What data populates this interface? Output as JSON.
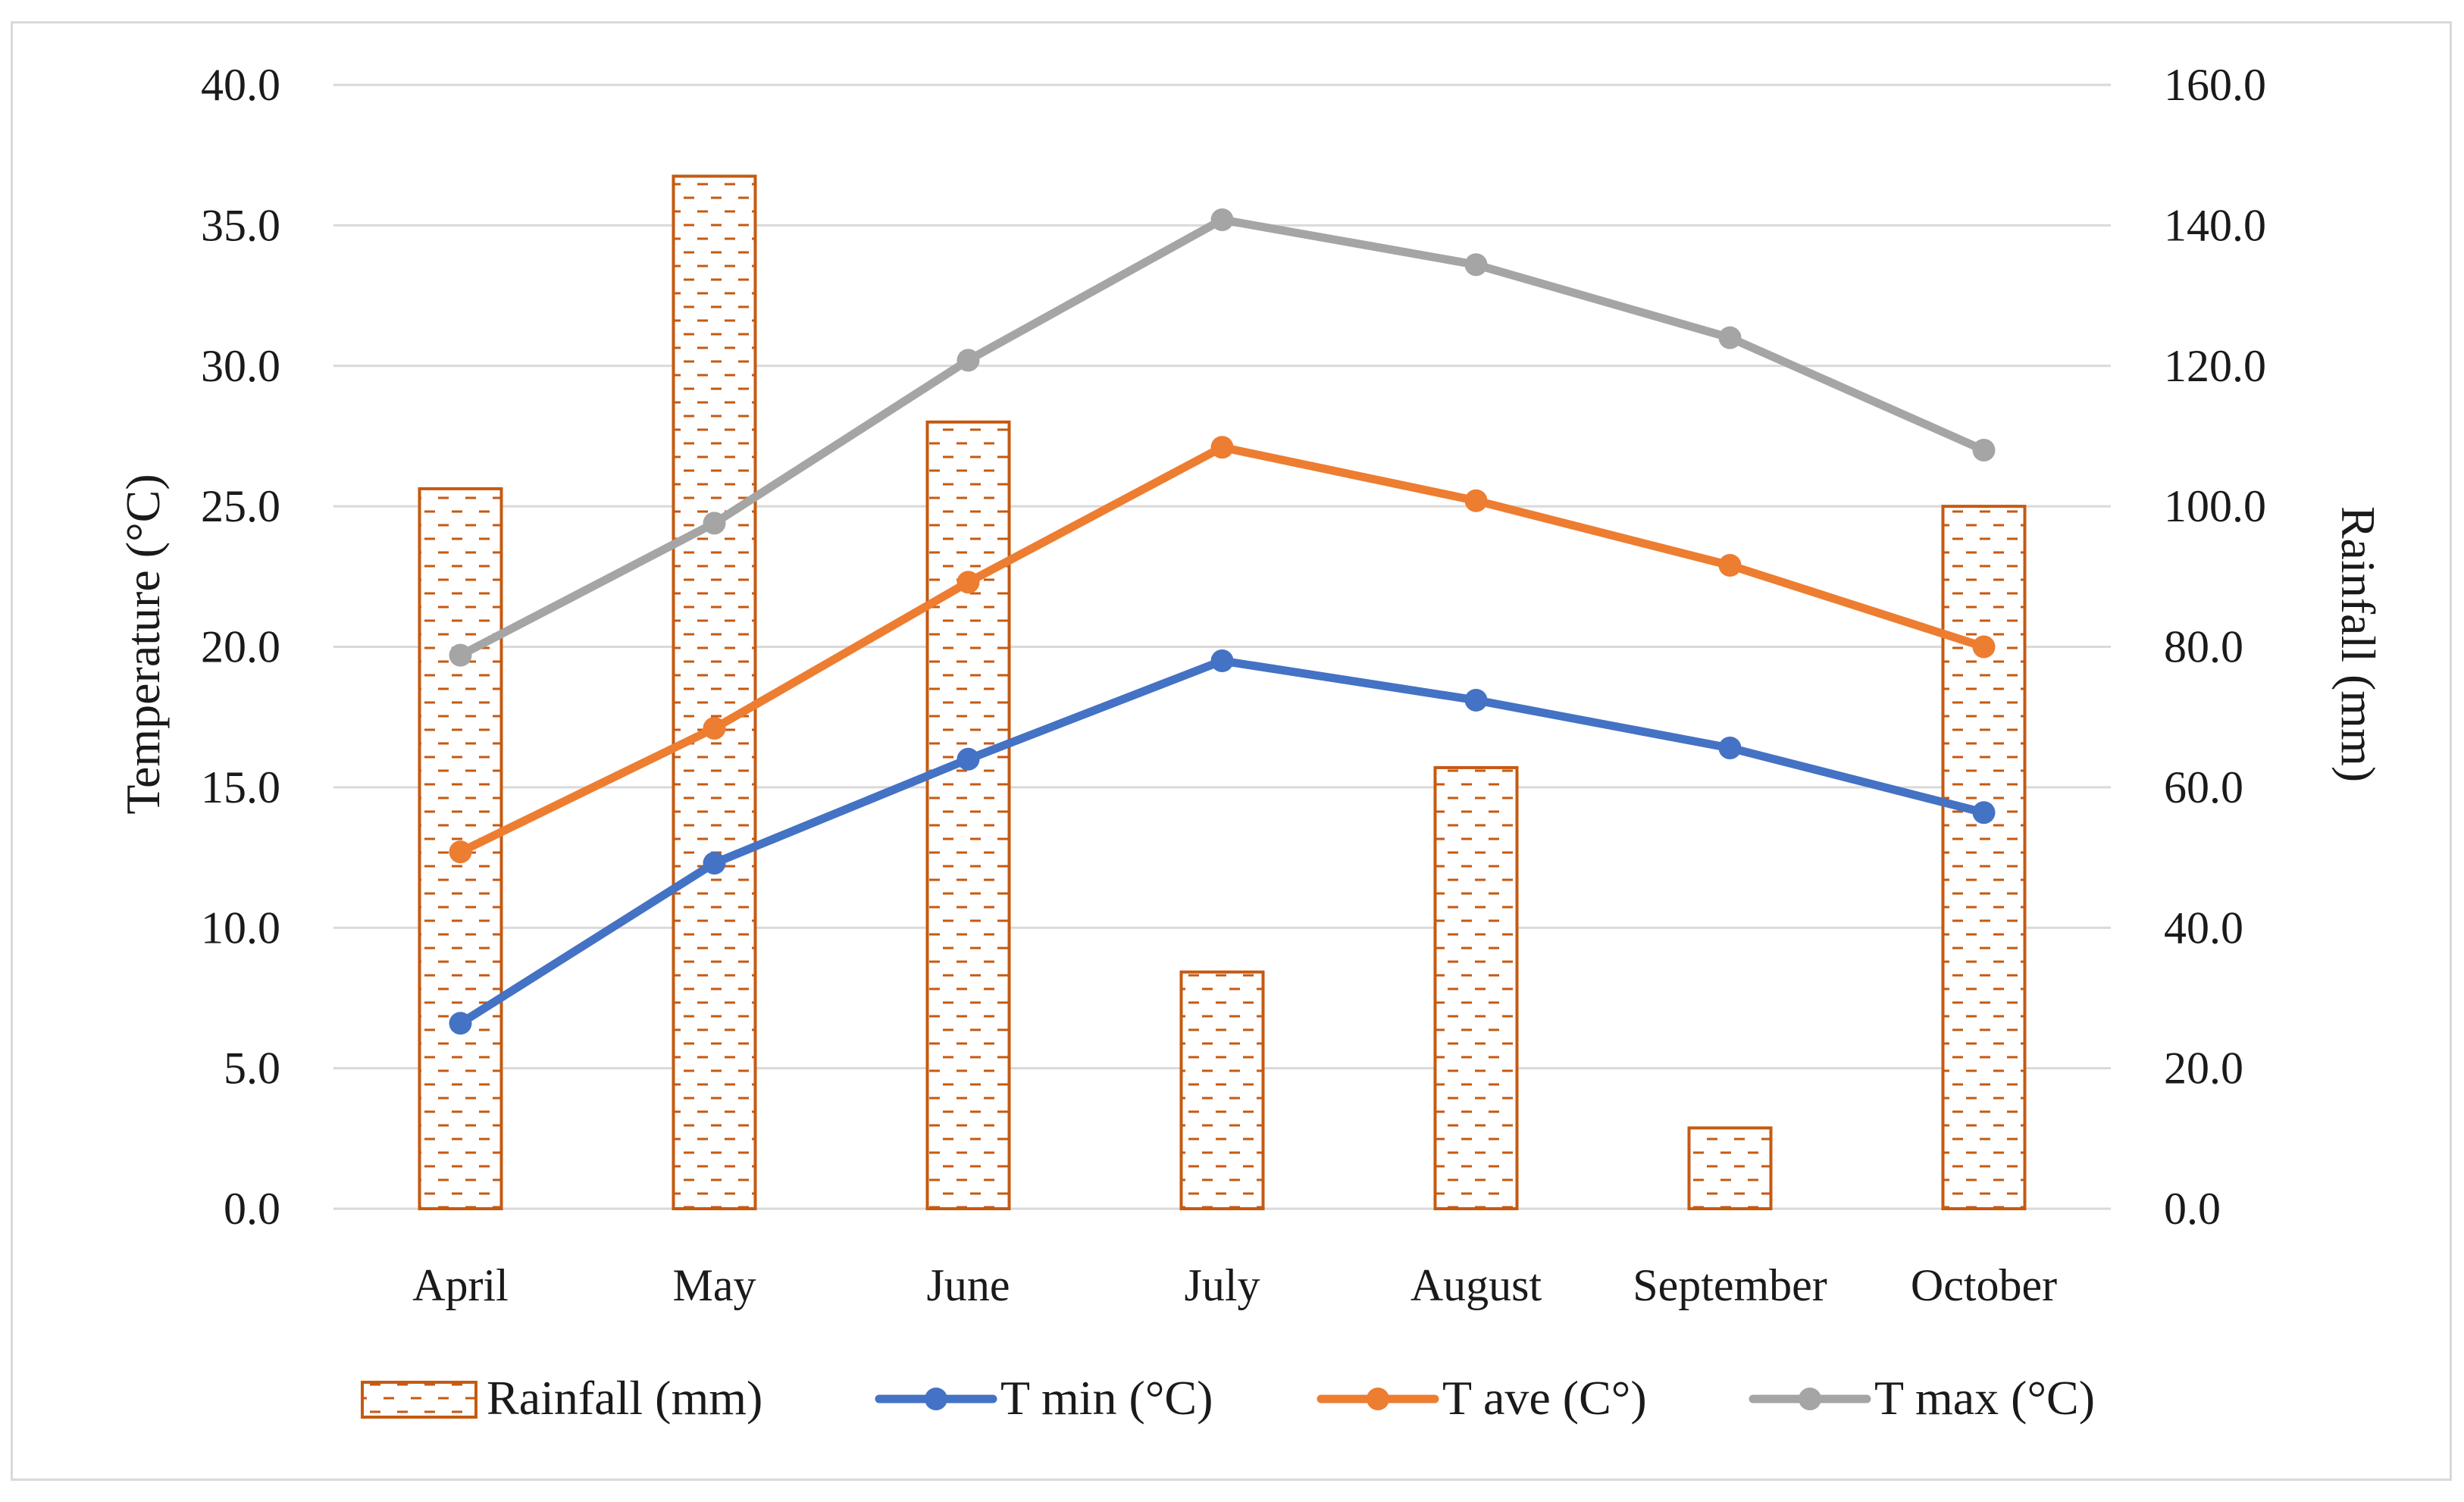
{
  "chart_data": {
    "type": "bar+line",
    "categories": [
      "April",
      "May",
      "June",
      "July",
      "August",
      "September",
      "October"
    ],
    "left_axis": {
      "label": "Temperature (°C)",
      "ylim": [
        0,
        40
      ],
      "ticks": [
        "0.0",
        "5.0",
        "10.0",
        "15.0",
        "20.0",
        "25.0",
        "30.0",
        "35.0",
        "40.0"
      ]
    },
    "right_axis": {
      "label": "Rainfall (mm)",
      "ylim": [
        0,
        160
      ],
      "ticks": [
        "0.0",
        "20.0",
        "40.0",
        "60.0",
        "80.0",
        "100.0",
        "120.0",
        "140.0",
        "160.0"
      ]
    },
    "series": [
      {
        "name": "Rainfall (mm)",
        "type": "bar",
        "axis": "right",
        "color": "#c55a11",
        "values": [
          102.5,
          147.0,
          112.0,
          33.7,
          62.8,
          11.5,
          100.0
        ]
      },
      {
        "name": "T min (°C)",
        "type": "line",
        "axis": "left",
        "color": "#4472c4",
        "values": [
          6.6,
          12.3,
          16.0,
          19.5,
          18.1,
          16.4,
          14.1
        ]
      },
      {
        "name": "T ave (C°)",
        "type": "line",
        "axis": "left",
        "color": "#ed7d31",
        "values": [
          12.7,
          17.1,
          22.3,
          27.1,
          25.2,
          22.9,
          20.0
        ]
      },
      {
        "name": "T max (°C)",
        "type": "line",
        "axis": "left",
        "color": "#a5a5a5",
        "values": [
          19.7,
          24.4,
          30.2,
          35.2,
          33.6,
          31.0,
          27.0
        ]
      }
    ],
    "grid": true,
    "legend_position": "bottom"
  }
}
